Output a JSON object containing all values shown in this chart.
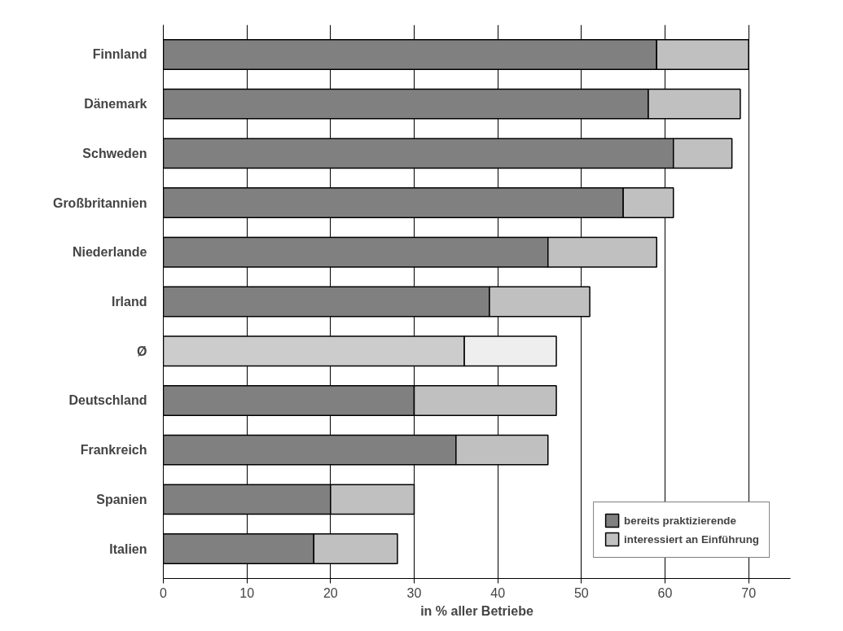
{
  "chart_data": {
    "type": "bar",
    "orientation": "horizontal",
    "stacked": true,
    "categories": [
      "Finnland",
      "Dänemark",
      "Schweden",
      "Großbritannien",
      "Niederlande",
      "Irland",
      "Ø",
      "Deutschland",
      "Frankreich",
      "Spanien",
      "Italien"
    ],
    "series": [
      {
        "name": "bereits praktizierende",
        "colors": [
          "#808080",
          "#808080",
          "#808080",
          "#808080",
          "#808080",
          "#808080",
          "#cccccc",
          "#808080",
          "#808080",
          "#808080",
          "#808080"
        ],
        "values": [
          59,
          58,
          61,
          55,
          46,
          39,
          36,
          30,
          35,
          20,
          18
        ]
      },
      {
        "name": "interessiert an Einführung",
        "colors": [
          "#c0c0c0",
          "#c0c0c0",
          "#c0c0c0",
          "#c0c0c0",
          "#c0c0c0",
          "#c0c0c0",
          "#eeeeee",
          "#c0c0c0",
          "#c0c0c0",
          "#c0c0c0",
          "#c0c0c0"
        ],
        "values": [
          11,
          11,
          7,
          6,
          13,
          12,
          11,
          17,
          11,
          10,
          10
        ]
      }
    ],
    "xlabel": "in % aller Betriebe",
    "xlim": [
      0,
      75
    ],
    "xticks": [
      0,
      10,
      20,
      30,
      40,
      50,
      60,
      70
    ],
    "grid": "x",
    "legend": "bottom right"
  }
}
